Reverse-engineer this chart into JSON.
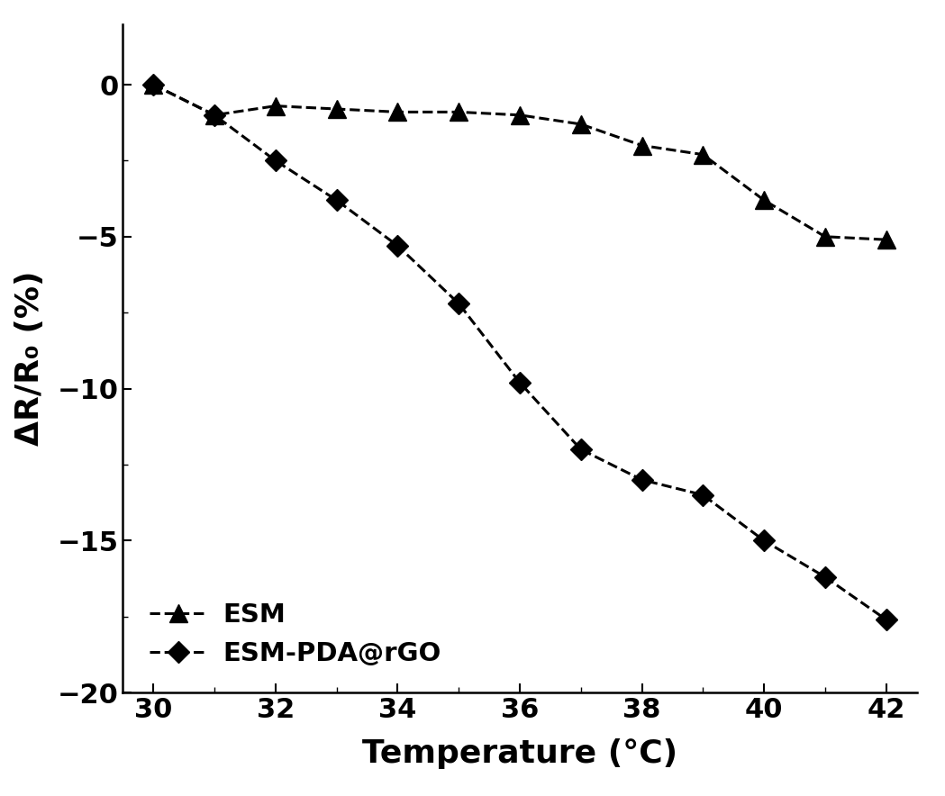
{
  "esm_x": [
    30,
    31,
    32,
    33,
    34,
    35,
    36,
    37,
    38,
    39,
    40,
    41,
    42
  ],
  "esm_y": [
    0.0,
    -1.0,
    -0.7,
    -0.8,
    -0.9,
    -0.9,
    -1.0,
    -1.3,
    -2.0,
    -2.3,
    -3.8,
    -5.0,
    -5.1
  ],
  "esm_pda_x": [
    30,
    31,
    32,
    33,
    34,
    35,
    36,
    37,
    38,
    39,
    40,
    41,
    42
  ],
  "esm_pda_y": [
    0.0,
    -1.0,
    -2.5,
    -3.8,
    -5.3,
    -7.2,
    -9.8,
    -12.0,
    -13.0,
    -13.5,
    -15.0,
    -16.2,
    -17.6
  ],
  "xlabel": "Temperature (°C)",
  "ylabel": "ΔR/R₀ (%)",
  "xlim": [
    29.5,
    42.5
  ],
  "ylim": [
    -20,
    2
  ],
  "xticks": [
    30,
    32,
    34,
    36,
    38,
    40,
    42
  ],
  "yticks": [
    0,
    -5,
    -10,
    -15,
    -20
  ],
  "minor_xticks": [
    31,
    33,
    35,
    37,
    39,
    41
  ],
  "legend_labels": [
    "ESM",
    "ESM-PDA@rGO"
  ],
  "line_color": "#000000",
  "background_color": "#ffffff",
  "axis_fontsize": 26,
  "tick_fontsize": 22,
  "legend_fontsize": 21,
  "linewidth": 2.2,
  "markersize_triangle": 14,
  "markersize_diamond": 12
}
